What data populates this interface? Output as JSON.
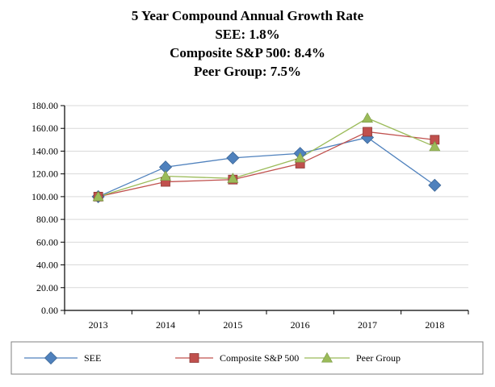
{
  "chart_data": {
    "type": "line",
    "title": "5 Year Compound Annual Growth Rate",
    "subtitle_lines": [
      "SEE: 1.8%",
      "Composite S&P 500: 8.4%",
      "Peer Group: 7.5%"
    ],
    "categories": [
      "2013",
      "2014",
      "2015",
      "2016",
      "2017",
      "2018"
    ],
    "ylim": [
      0,
      180
    ],
    "yticks": [
      "0.00",
      "20.00",
      "40.00",
      "60.00",
      "80.00",
      "100.00",
      "120.00",
      "140.00",
      "160.00",
      "180.00"
    ],
    "grid": true,
    "legend_position": "bottom",
    "series": [
      {
        "name": "SEE",
        "color": "#4f81bd",
        "marker": "diamond",
        "values": [
          100,
          126,
          134,
          138,
          152,
          110
        ]
      },
      {
        "name": "Composite S&P 500",
        "color": "#c0504d",
        "marker": "square",
        "values": [
          100,
          113,
          115,
          129,
          157,
          150
        ]
      },
      {
        "name": "Peer Group",
        "color": "#9bbb59",
        "marker": "triangle",
        "values": [
          100,
          118,
          116,
          134,
          169,
          144
        ]
      }
    ]
  }
}
